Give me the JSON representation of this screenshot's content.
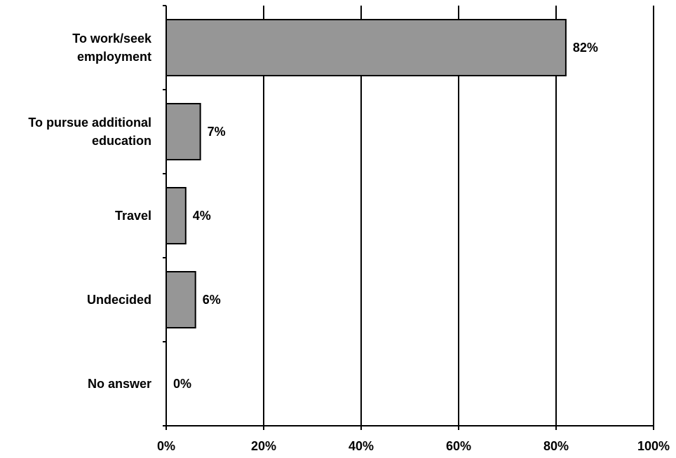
{
  "chart_data": {
    "type": "bar",
    "orientation": "horizontal",
    "title": "",
    "xlabel": "",
    "ylabel": "",
    "categories": [
      [
        "To work/seek",
        "employment"
      ],
      [
        "To pursue additional",
        "education"
      ],
      [
        "Travel"
      ],
      [
        "Undecided"
      ],
      [
        "No answer"
      ]
    ],
    "values": [
      82,
      7,
      4,
      6,
      0
    ],
    "data_labels": [
      "82%",
      "7%",
      "4%",
      "6%",
      "0%"
    ],
    "xlim": [
      0,
      100
    ],
    "x_ticks": [
      0,
      20,
      40,
      60,
      80,
      100
    ],
    "x_tick_labels": [
      "0%",
      "20%",
      "40%",
      "60%",
      "80%",
      "100%"
    ],
    "grid": true,
    "legend": "none",
    "bar_color": "#969696",
    "bar_edge_color": "#000000"
  }
}
